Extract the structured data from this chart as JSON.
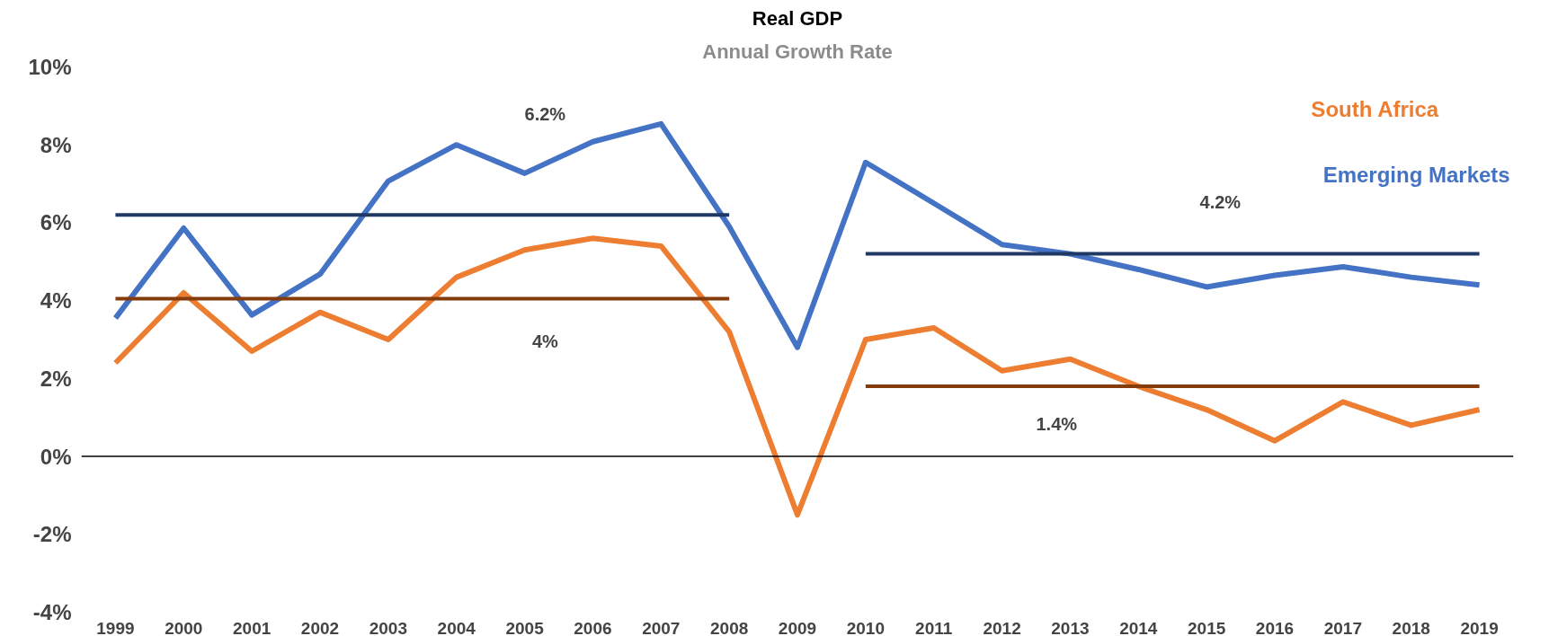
{
  "chart_data": {
    "type": "line",
    "title": "Real GDP",
    "subtitle": "Annual Growth Rate",
    "x": [
      1999,
      2000,
      2001,
      2002,
      2003,
      2004,
      2005,
      2006,
      2007,
      2008,
      2009,
      2010,
      2011,
      2012,
      2013,
      2014,
      2015,
      2016,
      2017,
      2018,
      2019
    ],
    "xlim": [
      1998.5,
      2019.5
    ],
    "xticks": [
      1999,
      2000,
      2001,
      2002,
      2003,
      2004,
      2005,
      2006,
      2007,
      2008,
      2009,
      2010,
      2011,
      2012,
      2013,
      2014,
      2015,
      2016,
      2017,
      2018,
      2019
    ],
    "ylim": [
      -4,
      10
    ],
    "yticks": [
      {
        "value": -4,
        "label": "-4%"
      },
      {
        "value": -2,
        "label": "-2%"
      },
      {
        "value": 0,
        "label": "0%"
      },
      {
        "value": 2,
        "label": "2%"
      },
      {
        "value": 4,
        "label": "4%"
      },
      {
        "value": 6,
        "label": "6%"
      },
      {
        "value": 8,
        "label": "8%"
      },
      {
        "value": 10,
        "label": "10%"
      }
    ],
    "series": [
      {
        "name": "Emerging Markets",
        "color": "#4472c4",
        "values": [
          3.55,
          5.86,
          3.63,
          4.68,
          7.07,
          8.0,
          7.27,
          8.08,
          8.54,
          5.9,
          2.8,
          7.55,
          6.5,
          5.44,
          5.2,
          4.8,
          4.35,
          4.65,
          4.87,
          4.6,
          4.4
        ]
      },
      {
        "name": "South Africa",
        "color": "#ed7d31",
        "values": [
          2.4,
          4.2,
          2.7,
          3.7,
          3.0,
          4.6,
          5.3,
          5.6,
          5.4,
          3.2,
          -1.5,
          3.0,
          3.3,
          2.2,
          2.5,
          1.8,
          1.2,
          0.4,
          1.4,
          0.8,
          1.2
        ]
      },
      {
        "type": "line",
        "color": "#203864",
        "x": [
          1999,
          2008
        ],
        "values": [
          6.2,
          6.2
        ]
      },
      {
        "type": "line",
        "color": "#203864",
        "x": [
          2010,
          2019
        ],
        "values": [
          5.2,
          5.2
        ]
      },
      {
        "type": "line",
        "color": "#843c0c",
        "x": [
          1999,
          2008
        ],
        "values": [
          4.05,
          4.05
        ]
      },
      {
        "type": "line",
        "color": "#843c0c",
        "x": [
          2010,
          2019
        ],
        "values": [
          1.8,
          1.8
        ]
      }
    ],
    "annotations": [
      {
        "text": "6.2%",
        "x": 2005.3,
        "y": 7.4
      },
      {
        "text": "4.2%",
        "x": 2015.2,
        "y": 5.2
      },
      {
        "text": "4%",
        "x": 2005.3,
        "y": 4.05
      },
      {
        "text": "1.4%",
        "x": 2012.8,
        "y": 1.8
      }
    ],
    "ref_lines": [
      {
        "axis": "y",
        "value": 0,
        "color": "#000000"
      }
    ],
    "legend": "top right",
    "grid": false,
    "marker": "none",
    "line_style": "solid"
  }
}
